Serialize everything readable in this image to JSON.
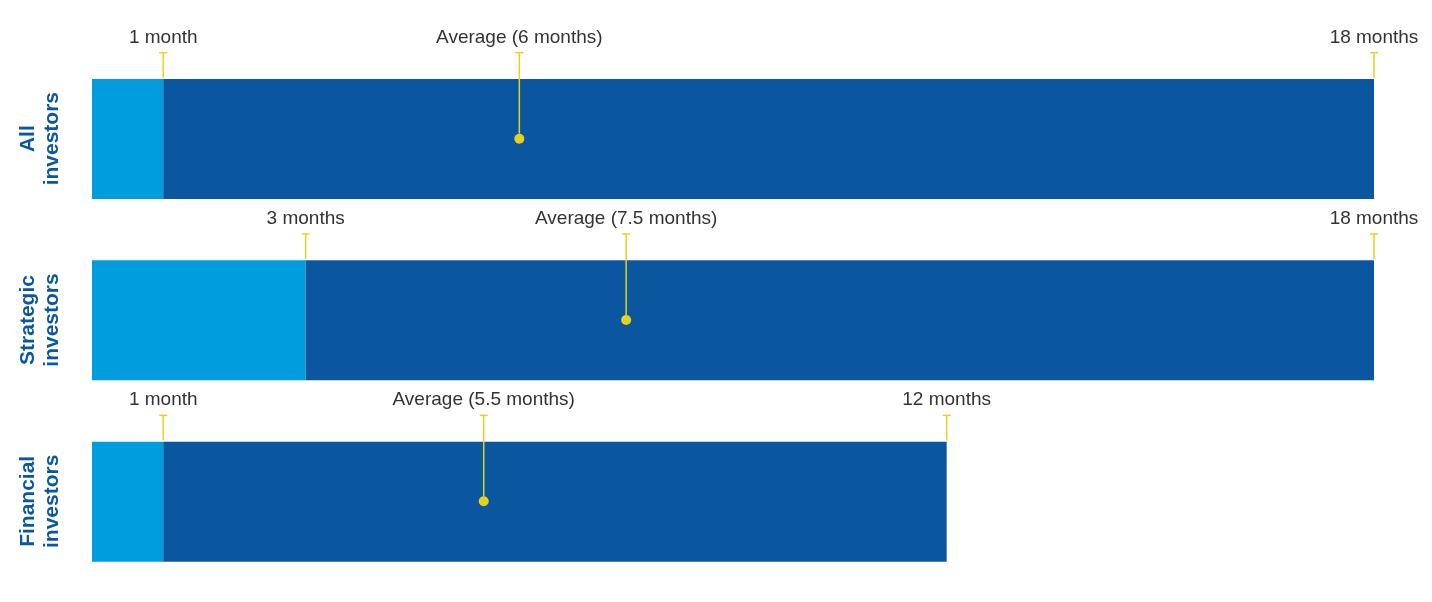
{
  "chart_data": {
    "type": "bar",
    "orientation": "horizontal",
    "stacked": true,
    "categories": [
      "All investors",
      "Strategic investors",
      "Financial investors"
    ],
    "series": [
      {
        "color": "#009ddc",
        "values": [
          1,
          3,
          1
        ],
        "value_labels": [
          "1 month",
          "3 months",
          "1 month"
        ]
      },
      {
        "color": "#0a57a0",
        "values": [
          17,
          15,
          11
        ]
      },
      {
        "type": "scatter",
        "color": "#e6d21c",
        "values": [
          6,
          7.5,
          5.5
        ],
        "value_labels": [
          "Average (6 months)",
          "Average (7.5 months)",
          "Average (5.5 months)"
        ]
      }
    ],
    "totals": [
      "18 months",
      "18 months",
      "12 months"
    ],
    "marker": "circle",
    "tick_labels": "y"
  }
}
